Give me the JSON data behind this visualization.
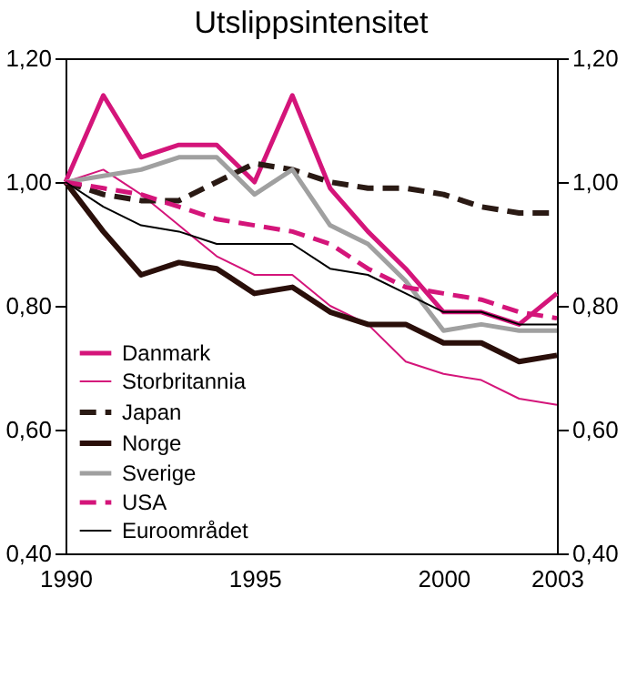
{
  "chart_data": {
    "type": "line",
    "title": "Utslippsintensitet",
    "x": [
      1990,
      1991,
      1992,
      1993,
      1994,
      1995,
      1996,
      1997,
      1998,
      1999,
      2000,
      2001,
      2002,
      2003
    ],
    "series": [
      {
        "name": "Danmark",
        "color": "#d4157a",
        "line_style": "solid",
        "values": [
          1.0,
          1.14,
          1.04,
          1.06,
          1.06,
          1.0,
          1.14,
          0.99,
          0.92,
          0.86,
          0.79,
          0.79,
          0.77,
          0.82
        ]
      },
      {
        "name": "Storbritannia",
        "color": "#d4157a",
        "line_style": "solid",
        "values": [
          1.0,
          1.02,
          0.98,
          0.93,
          0.88,
          0.85,
          0.85,
          0.8,
          0.77,
          0.71,
          0.69,
          0.68,
          0.65,
          0.64
        ]
      },
      {
        "name": "Japan",
        "color": "#2a1a14",
        "line_style": "dashed",
        "values": [
          1.0,
          0.98,
          0.97,
          0.97,
          1.0,
          1.03,
          1.02,
          1.0,
          0.99,
          0.99,
          0.98,
          0.96,
          0.95,
          0.95
        ]
      },
      {
        "name": "Norge",
        "color": "#2a0f0a",
        "line_style": "solid",
        "values": [
          1.0,
          0.92,
          0.85,
          0.87,
          0.86,
          0.82,
          0.83,
          0.79,
          0.77,
          0.77,
          0.74,
          0.74,
          0.71,
          0.72
        ]
      },
      {
        "name": "Sverige",
        "color": "#a0a0a0",
        "line_style": "solid",
        "values": [
          1.0,
          1.01,
          1.02,
          1.04,
          1.04,
          0.98,
          1.02,
          0.93,
          0.9,
          0.84,
          0.76,
          0.77,
          0.76,
          0.76
        ]
      },
      {
        "name": "USA",
        "color": "#d4157a",
        "line_style": "dashed",
        "values": [
          1.0,
          0.99,
          0.98,
          0.96,
          0.94,
          0.93,
          0.92,
          0.9,
          0.86,
          0.83,
          0.82,
          0.81,
          0.79,
          0.78
        ]
      },
      {
        "name": "Euroområdet",
        "color": "#000000",
        "line_style": "solid",
        "values": [
          1.0,
          0.96,
          0.93,
          0.92,
          0.9,
          0.9,
          0.9,
          0.86,
          0.85,
          0.82,
          0.79,
          0.79,
          0.77,
          0.77
        ]
      }
    ],
    "xlim": [
      1990,
      2003
    ],
    "xticks": [
      1990,
      1995,
      2000,
      2003
    ],
    "ylim": [
      0.4,
      1.2
    ],
    "yticks": [
      {
        "value": 0.4,
        "label": "0,40"
      },
      {
        "value": 0.6,
        "label": "0,60"
      },
      {
        "value": 0.8,
        "label": "0,80"
      },
      {
        "value": 1.0,
        "label": "1,00"
      },
      {
        "value": 1.2,
        "label": "1,20"
      }
    ],
    "y2lim": [
      0.4,
      1.2
    ],
    "y2ticks": [
      {
        "value": 0.4,
        "label": "0,40"
      },
      {
        "value": 0.6,
        "label": "0,60"
      },
      {
        "value": 0.8,
        "label": "0,80"
      },
      {
        "value": 1.0,
        "label": "1,00"
      },
      {
        "value": 1.2,
        "label": "1,20"
      }
    ],
    "grid": false,
    "legend": "bottom left"
  }
}
